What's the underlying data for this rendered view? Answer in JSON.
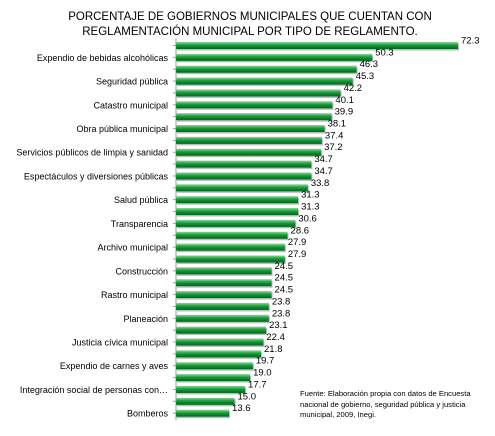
{
  "title": {
    "line1": "PORCENTAJE DE  GOBIERNOS MUNICIPALES QUE CUENTAN CON",
    "line2": "REGLAMENTACIÓN MUNICIPAL POR TIPO DE REGLAMENTO."
  },
  "source_note": "Fuente: Elaboración propia con datos de Encuesta nacional de gobierno, seguridad pública y justicia municipal, 2009, Inegi.",
  "colors": {
    "bar": "#1a9a3c",
    "bar_highlight": "#7ee08f",
    "bar_shadow": "#0b5e22"
  },
  "chart_data": {
    "type": "bar",
    "orientation": "horizontal",
    "title": "PORCENTAJE DE  GOBIERNOS MUNICIPALES QUE CUENTAN CON REGLAMENTACIÓN MUNICIPAL POR TIPO DE REGLAMENTO.",
    "categories": [
      "",
      "Expendio de bebidas alcohólicas",
      "",
      "Seguridad pública",
      "",
      "Catastro municipal",
      "",
      "Obra pública municipal",
      "",
      "Servicios públicos de limpia y sanidad",
      "",
      "Espectáculos y diversiones públicas",
      "",
      "Salud pública",
      "",
      "Transparencia",
      "",
      "Archivo municipal",
      "",
      "Construcción",
      "",
      "Rastro municipal",
      "",
      "Planeación",
      "",
      "Justicia cívica municipal",
      "",
      "Expendio de carnes y aves",
      "",
      "Integración social de personas con…",
      "",
      "Bomberos"
    ],
    "values": [
      72.3,
      50.3,
      46.3,
      45.3,
      42.2,
      40.1,
      39.9,
      38.1,
      37.4,
      37.2,
      34.7,
      34.7,
      33.8,
      31.3,
      31.3,
      30.6,
      28.6,
      27.9,
      27.9,
      24.5,
      24.5,
      24.5,
      23.8,
      23.8,
      23.1,
      22.4,
      21.8,
      19.7,
      19.0,
      17.7,
      15.0,
      13.6
    ],
    "value_labels": [
      "72.3",
      "50.3",
      "46.3",
      "45.3",
      "42.2",
      "40.1",
      "39.9",
      "38.1",
      "37.4",
      "37.2",
      "34.7",
      "34.7",
      "33.8",
      "31.3",
      "31.3",
      "30.6",
      "28.6",
      "27.9",
      "27.9",
      "24.5",
      "24.5",
      "24.5",
      "23.8",
      "23.8",
      "23.1",
      "22.4",
      "21.8",
      "19.7",
      "19.0",
      "17.7",
      "15.0",
      "13.6"
    ],
    "xlim": [
      0,
      72.3
    ],
    "grid": false,
    "legend": "none"
  }
}
